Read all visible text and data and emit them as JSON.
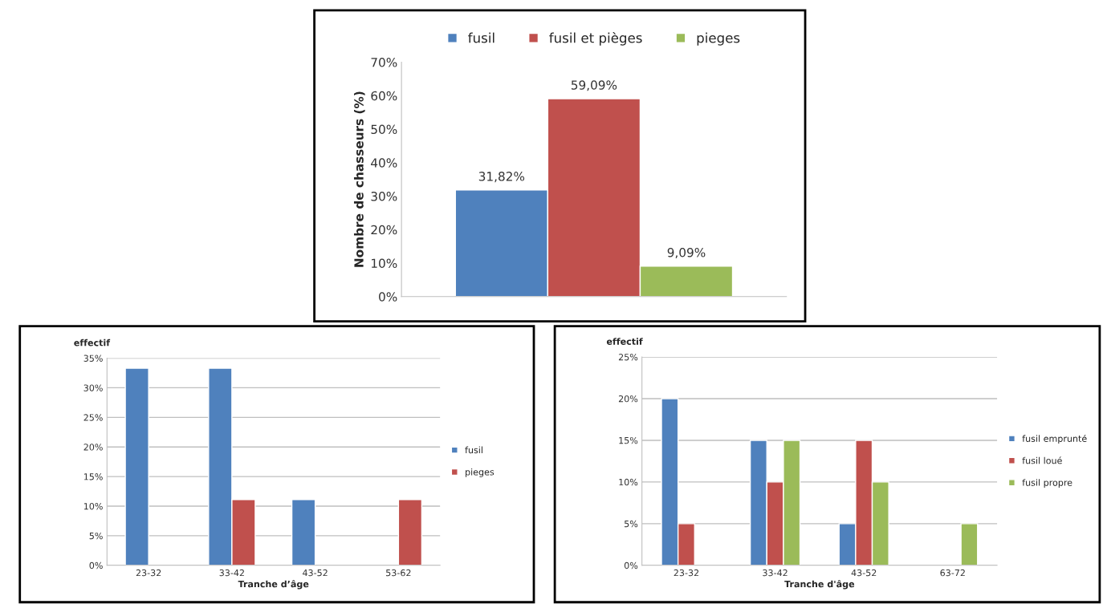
{
  "chart_data": [
    {
      "type": "bar",
      "categories": [
        null
      ],
      "ylabel": "Nombre de chasseurs (%)",
      "series": [
        {
          "name": "fusil",
          "color": "#4f81bd",
          "values": [
            31.82
          ],
          "value_labels": [
            "31,82%"
          ]
        },
        {
          "name": "fusil et pièges",
          "color": "#c0504d",
          "values": [
            59.09
          ],
          "value_labels": [
            "59,09%"
          ]
        },
        {
          "name": "pieges",
          "color": "#9bbb59",
          "values": [
            9.09
          ],
          "value_labels": [
            "9,09%"
          ]
        }
      ],
      "ylim": [
        0,
        70
      ],
      "yticks": [
        {
          "value": 0,
          "label": "0%"
        },
        {
          "value": 10,
          "label": "10%"
        },
        {
          "value": 20,
          "label": "20%"
        },
        {
          "value": 30,
          "label": "30%"
        },
        {
          "value": 40,
          "label": "40%"
        },
        {
          "value": 50,
          "label": "50%"
        },
        {
          "value": 60,
          "label": "60%"
        },
        {
          "value": 70,
          "label": "70%"
        }
      ],
      "grid": false,
      "legend": "top"
    },
    {
      "type": "bar",
      "categories": [
        "23-32",
        "33-42",
        "43-52",
        "53-62"
      ],
      "ylabel": "effectif",
      "xlabel": "Tranche d’âge",
      "series": [
        {
          "name": "fusil",
          "color": "#4f81bd",
          "values": [
            33.3,
            33.3,
            11.1,
            null
          ]
        },
        {
          "name": "pieges",
          "color": "#c0504d",
          "values": [
            null,
            11.1,
            null,
            11.1
          ]
        }
      ],
      "ylim": [
        0,
        35
      ],
      "yticks": [
        {
          "value": 0,
          "label": "0%"
        },
        {
          "value": 5,
          "label": "5%"
        },
        {
          "value": 10,
          "label": "10%"
        },
        {
          "value": 15,
          "label": "15%"
        },
        {
          "value": 20,
          "label": "20%"
        },
        {
          "value": 25,
          "label": "25%"
        },
        {
          "value": 30,
          "label": "30%"
        },
        {
          "value": 35,
          "label": "35%"
        }
      ],
      "grid": "y",
      "legend": "right"
    },
    {
      "type": "bar",
      "categories": [
        "23-32",
        "33-42",
        "43-52",
        "63-72"
      ],
      "ylabel": "effectif",
      "xlabel": "Tranche d'âge",
      "series": [
        {
          "name": "fusil emprunté",
          "color": "#4f81bd",
          "values": [
            20,
            15,
            5,
            null
          ]
        },
        {
          "name": "fusil loué",
          "color": "#c0504d",
          "values": [
            5,
            10,
            15,
            null
          ]
        },
        {
          "name": "fusil propre",
          "color": "#9bbb59",
          "values": [
            null,
            15,
            10,
            5
          ]
        }
      ],
      "ylim": [
        0,
        25
      ],
      "yticks": [
        {
          "value": 0,
          "label": "0%"
        },
        {
          "value": 5,
          "label": "5%"
        },
        {
          "value": 10,
          "label": "10%"
        },
        {
          "value": 15,
          "label": "15%"
        },
        {
          "value": 20,
          "label": "20%"
        },
        {
          "value": 25,
          "label": "25%"
        }
      ],
      "grid": "y",
      "legend": "right"
    }
  ]
}
